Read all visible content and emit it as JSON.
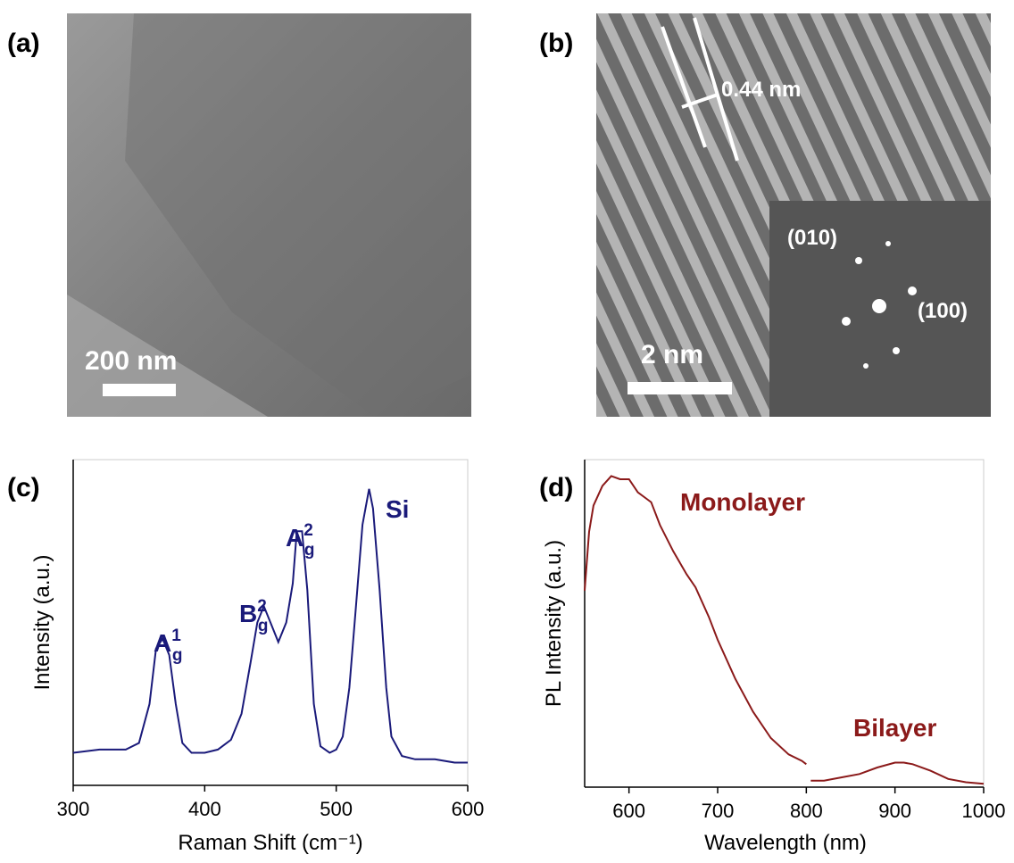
{
  "panels": [
    {
      "label": "(a)",
      "scale_bar": "200 nm"
    },
    {
      "label": "(b)",
      "scale_bar": "2 nm",
      "spacing": "0.44 nm",
      "inset_labels": [
        "(010)",
        "(100)"
      ]
    }
  ],
  "chart_data": [
    {
      "type": "line",
      "label": "(c)",
      "x_label": "Raman Shift (cm⁻¹)",
      "y_label": "Intensity (a.u.)",
      "xlim": [
        300,
        600
      ],
      "xticks": [
        300,
        400,
        500,
        600
      ],
      "ylim": [
        0,
        100
      ],
      "series": [
        {
          "color": "#1a1a7a",
          "x": [
            300,
            320,
            340,
            350,
            358,
            363,
            368,
            373,
            378,
            383,
            390,
            400,
            410,
            420,
            428,
            435,
            440,
            445,
            450,
            456,
            462,
            467,
            470,
            474,
            478,
            483,
            488,
            495,
            500,
            505,
            510,
            515,
            520,
            525,
            528,
            533,
            538,
            542,
            550,
            560,
            575,
            590,
            600
          ],
          "values": [
            10,
            11,
            11,
            13,
            25,
            42,
            45,
            40,
            25,
            13,
            10,
            10,
            11,
            14,
            22,
            38,
            50,
            55,
            50,
            44,
            50,
            62,
            78,
            78,
            60,
            25,
            12,
            10,
            11,
            15,
            30,
            55,
            80,
            91,
            85,
            60,
            30,
            15,
            9,
            8,
            8,
            7,
            7
          ]
        }
      ],
      "annotations": [
        {
          "text": "A",
          "sup": "1",
          "sub": "g"
        },
        {
          "text": "B",
          "sup": "2",
          "sub": "g"
        },
        {
          "text": "A",
          "sup": "2",
          "sub": "g"
        },
        {
          "text": "Si"
        }
      ]
    },
    {
      "type": "line",
      "label": "(d)",
      "x_label": "Wavelength (nm)",
      "y_label": "PL Intensity (a.u.)",
      "xlim": [
        550,
        1000
      ],
      "xticks": [
        600,
        700,
        800,
        900,
        1000
      ],
      "ylim": [
        0,
        100
      ],
      "series": [
        {
          "name": "Monolayer",
          "color": "#8b1a1a",
          "x": [
            550,
            555,
            560,
            570,
            580,
            590,
            600,
            610,
            620,
            625,
            635,
            650,
            665,
            675,
            690,
            700,
            720,
            740,
            760,
            780,
            795,
            800
          ],
          "values": [
            60,
            78,
            86,
            92,
            95,
            94,
            94,
            90,
            88,
            87,
            80,
            72,
            65,
            61,
            52,
            45,
            33,
            23,
            15,
            10,
            8,
            7
          ]
        },
        {
          "name": "Bilayer",
          "color": "#8b1a1a",
          "x": [
            805,
            820,
            840,
            860,
            880,
            900,
            910,
            920,
            940,
            960,
            980,
            1000
          ],
          "values": [
            2,
            2,
            3,
            4,
            6,
            7.5,
            7.5,
            7,
            5,
            2.5,
            1.5,
            1
          ]
        }
      ]
    }
  ]
}
